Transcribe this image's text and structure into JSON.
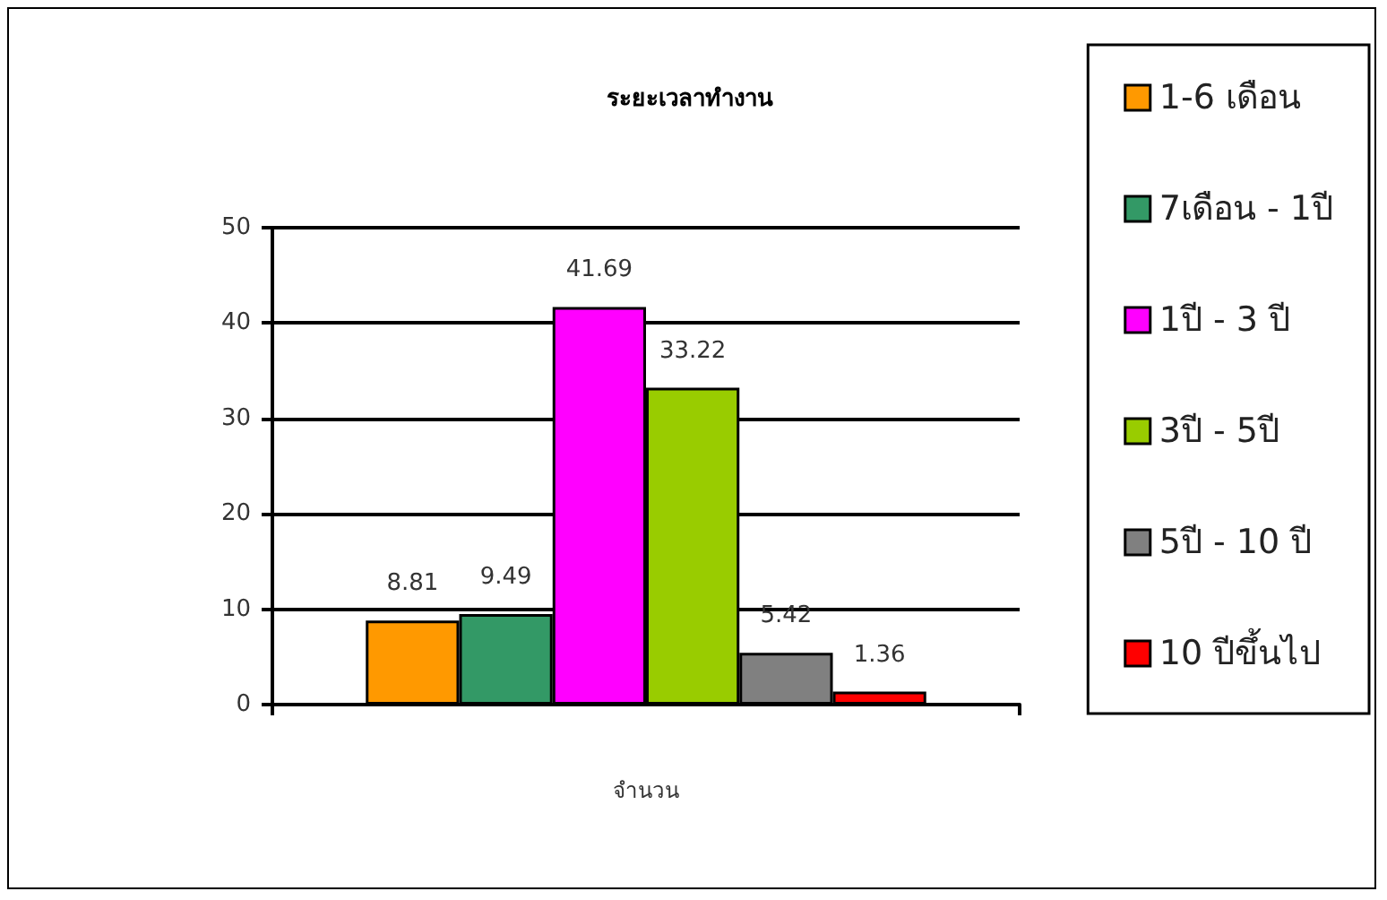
{
  "chart_data": {
    "type": "bar",
    "title": "ระยะเวลาทำงาน",
    "xlabel": "จำนวน",
    "categories": [
      null
    ],
    "series": [
      {
        "name": "1-6 เดือน",
        "color": "#ff9900",
        "values": [
          8.81
        ]
      },
      {
        "name": "7เดือน - 1ปี",
        "color": "#339966",
        "values": [
          9.49
        ]
      },
      {
        "name": "1ปี - 3 ปี",
        "color": "#ff00ff",
        "values": [
          41.69
        ]
      },
      {
        "name": "3ปี - 5ปี",
        "color": "#99cc00",
        "values": [
          33.22
        ]
      },
      {
        "name": "5ปี - 10 ปี",
        "color": "#808080",
        "values": [
          5.42
        ]
      },
      {
        "name": "10 ปีขึ้นไป",
        "color": "#ff0000",
        "values": [
          1.36
        ]
      }
    ],
    "ylim": [
      0,
      50
    ],
    "yticks": [
      0,
      10,
      20,
      30,
      40,
      50
    ],
    "grid": "y",
    "legend": "right",
    "data_labels": true
  }
}
